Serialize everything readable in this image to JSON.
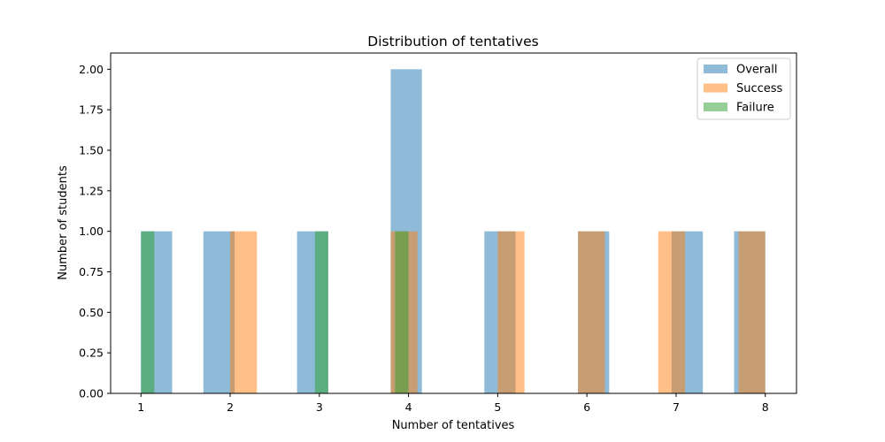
{
  "chart_data": {
    "type": "bar",
    "title": "Distribution of tentatives",
    "xlabel": "Number of tentatives",
    "ylabel": "Number of students",
    "xlim": [
      0.66,
      8.35
    ],
    "ylim": [
      0,
      2.1
    ],
    "x_ticks": [
      "1",
      "2",
      "3",
      "4",
      "5",
      "6",
      "7",
      "8"
    ],
    "y_ticks": [
      "0.00",
      "0.25",
      "0.50",
      "0.75",
      "1.00",
      "1.25",
      "1.50",
      "1.75",
      "2.00"
    ],
    "grid": false,
    "legend_position": "top-right",
    "series": [
      {
        "name": "Overall",
        "color": "#1f77b4",
        "opacity": 0.5,
        "bars": [
          {
            "x0": 1.0,
            "x1": 1.35,
            "value": 1
          },
          {
            "x0": 1.7,
            "x1": 2.05,
            "value": 1
          },
          {
            "x0": 2.75,
            "x1": 3.1,
            "value": 1
          },
          {
            "x0": 3.8,
            "x1": 4.15,
            "value": 2
          },
          {
            "x0": 4.85,
            "x1": 5.2,
            "value": 1
          },
          {
            "x0": 5.9,
            "x1": 6.25,
            "value": 1
          },
          {
            "x0": 6.95,
            "x1": 7.3,
            "value": 1
          },
          {
            "x0": 7.65,
            "x1": 8.0,
            "value": 1
          }
        ]
      },
      {
        "name": "Success",
        "color": "#ff7f0e",
        "opacity": 0.5,
        "bars": [
          {
            "x0": 2.0,
            "x1": 2.3,
            "value": 1
          },
          {
            "x0": 3.8,
            "x1": 4.1,
            "value": 1
          },
          {
            "x0": 5.0,
            "x1": 5.3,
            "value": 1
          },
          {
            "x0": 5.9,
            "x1": 6.2,
            "value": 1
          },
          {
            "x0": 6.8,
            "x1": 7.1,
            "value": 1
          },
          {
            "x0": 7.7,
            "x1": 8.0,
            "value": 1
          }
        ]
      },
      {
        "name": "Failure",
        "color": "#2ca02c",
        "opacity": 0.5,
        "bars": [
          {
            "x0": 1.0,
            "x1": 1.15,
            "value": 1
          },
          {
            "x0": 2.95,
            "x1": 3.1,
            "value": 1
          },
          {
            "x0": 3.85,
            "x1": 4.0,
            "value": 1
          }
        ]
      }
    ]
  }
}
